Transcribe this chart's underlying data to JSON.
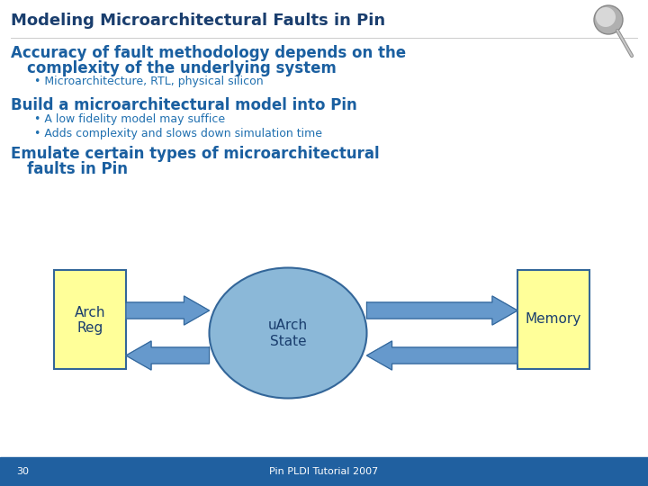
{
  "title": "Modeling Microarchitectural Faults in Pin",
  "title_color": "#1A3E6E",
  "slide_bg": "#FFFFFF",
  "footer_bg": "#2060A0",
  "footer_text": "Pin PLDI Tutorial 2007",
  "footer_page": "30",
  "footer_color": "#FFFFFF",
  "heading1_line1": "Accuracy of fault methodology depends on the",
  "heading1_line2": "complexity of the underlying system",
  "heading1_bullet": "Microarchitecture, RTL, physical silicon",
  "heading2": "Build a microarchitectural model into Pin",
  "heading2_bullets": [
    "A low fidelity model may suffice",
    "Adds complexity and slows down simulation time"
  ],
  "heading3_line1": "Emulate certain types of microarchitectural",
  "heading3_line2": "faults in Pin",
  "heading_color": "#1A5FA0",
  "bullet_color": "#2070B0",
  "box_left_label1": "Arch",
  "box_left_label2": "Reg",
  "box_right_label": "Memory",
  "box_center_label1": "uArch",
  "box_center_label2": "State",
  "box_fill": "#FFFF99",
  "ellipse_fill": "#8BB8D8",
  "arrow_fill": "#6699CC",
  "box_edge_color": "#336699",
  "diagram_text_color": "#1A3E6E",
  "title_fontsize": 13,
  "heading_fontsize": 12,
  "bullet_fontsize": 9,
  "diag_fontsize": 11
}
